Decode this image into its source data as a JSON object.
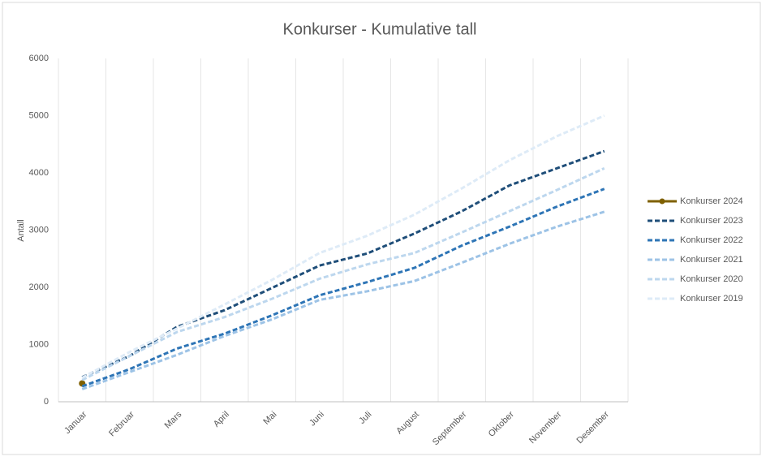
{
  "chart_data": {
    "type": "line",
    "title": "Konkurser - Kumulative tall",
    "ylabel": "Antall",
    "categories": [
      "Januar",
      "Februar",
      "Mars",
      "April",
      "Mai",
      "Juni",
      "Juli",
      "August",
      "September",
      "Oktober",
      "November",
      "Desember"
    ],
    "series": [
      {
        "name": "Konkurser 2024",
        "color": "#7f6000",
        "line_style": "solid",
        "marker": true,
        "values": [
          320,
          null,
          null,
          null,
          null,
          null,
          null,
          null,
          null,
          null,
          null,
          null
        ]
      },
      {
        "name": "Konkurser 2023",
        "color": "#1f4e79",
        "line_style": "dashed",
        "marker": false,
        "values": [
          430,
          800,
          1310,
          1600,
          1990,
          2380,
          2590,
          2940,
          3330,
          3780,
          4080,
          4380
        ]
      },
      {
        "name": "Konkurser 2022",
        "color": "#2e75b6",
        "line_style": "dashed",
        "marker": false,
        "values": [
          270,
          570,
          930,
          1190,
          1510,
          1860,
          2090,
          2340,
          2730,
          3060,
          3410,
          3720
        ]
      },
      {
        "name": "Konkurser 2021",
        "color": "#9dc3e6",
        "line_style": "dashed",
        "marker": false,
        "values": [
          220,
          520,
          820,
          1150,
          1440,
          1780,
          1930,
          2110,
          2430,
          2760,
          3060,
          3320
        ]
      },
      {
        "name": "Konkurser 2020",
        "color": "#bdd7ee",
        "line_style": "dashed",
        "marker": false,
        "values": [
          380,
          800,
          1220,
          1480,
          1800,
          2150,
          2400,
          2600,
          2960,
          3330,
          3700,
          4080
        ]
      },
      {
        "name": "Konkurser 2019",
        "color": "#deebf7",
        "line_style": "dashed",
        "marker": false,
        "values": [
          420,
          870,
          1280,
          1700,
          2130,
          2600,
          2900,
          3270,
          3730,
          4220,
          4640,
          5000
        ]
      }
    ],
    "ylim": [
      0,
      6000
    ],
    "yticks": [
      0,
      1000,
      2000,
      3000,
      4000,
      5000,
      6000
    ],
    "legend": "right",
    "grid": "vertical"
  }
}
